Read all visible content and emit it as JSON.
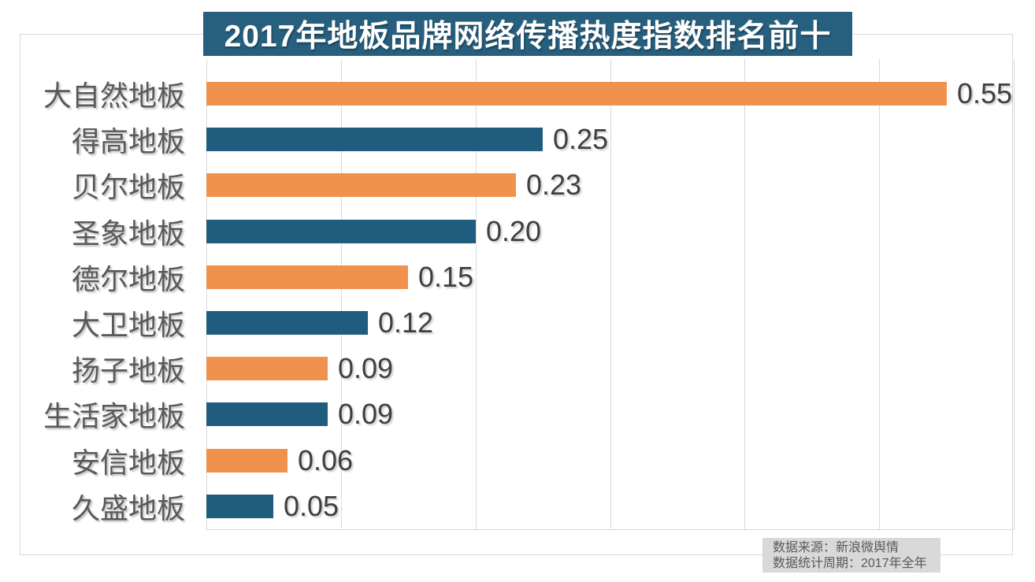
{
  "title": "2017年地板品牌网络传播热度指数排名前十",
  "chart_data": {
    "type": "bar",
    "orientation": "horizontal",
    "title": "2017年地板品牌网络传播热度指数排名前十",
    "categories": [
      "大自然地板",
      "得高地板",
      "贝尔地板",
      "圣象地板",
      "德尔地板",
      "大卫地板",
      "扬子地板",
      "生活家地板",
      "安信地板",
      "久盛地板"
    ],
    "values": [
      0.55,
      0.25,
      0.23,
      0.2,
      0.15,
      0.12,
      0.09,
      0.09,
      0.06,
      0.05
    ],
    "value_labels": [
      "0.55",
      "0.25",
      "0.23",
      "0.20",
      "0.15",
      "0.12",
      "0.09",
      "0.09",
      "0.06",
      "0.05"
    ],
    "xlabel": "",
    "ylabel": "",
    "xlim": [
      0,
      0.6
    ],
    "gridline_interval": 0.1,
    "grid": true,
    "legend_position": "none",
    "bar_colors_alternating": [
      "#f0924d",
      "#1f5c7d"
    ]
  },
  "footer": {
    "source_line1": "数据来源：新浪微舆情",
    "source_line2": "数据统计周期：2017年全年"
  },
  "colors": {
    "title_background": "#27607f",
    "title_text": "#ffffff",
    "orange_bar": "#f0924d",
    "blue_bar": "#1f5c7d",
    "gridline": "#d9d9d9",
    "frame_border": "#d9d9d9",
    "category_label_text": "#595959",
    "value_label_text": "#3f3f3f",
    "source_box_background": "#d9d9d9",
    "source_text": "#595959"
  }
}
